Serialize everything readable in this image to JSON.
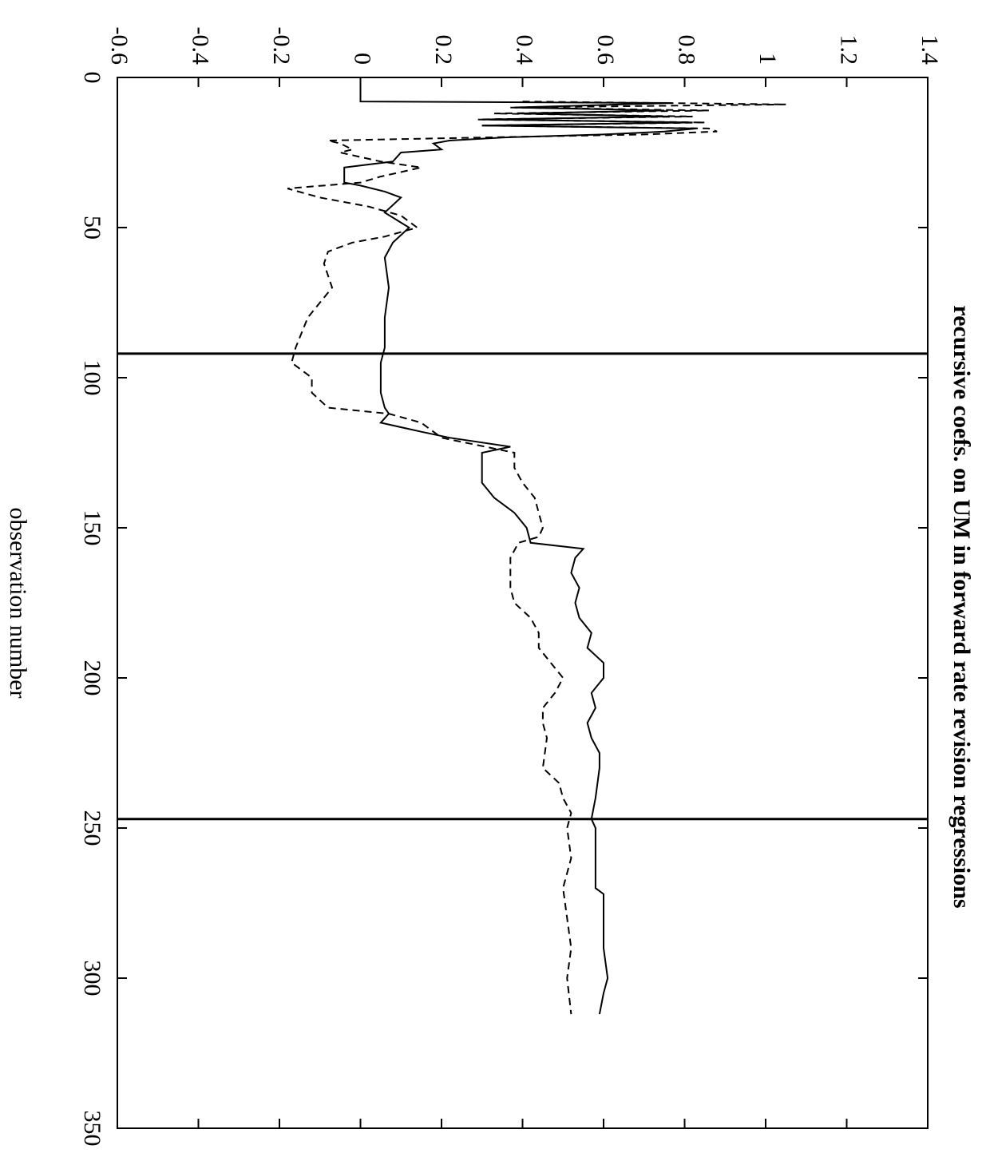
{
  "chart_data": {
    "type": "line",
    "title": "recursive coefs. on UM in forward rate revision regressions",
    "xlabel": "observation number",
    "xlim": [
      0,
      350
    ],
    "xticks": [
      0,
      50,
      100,
      150,
      200,
      250,
      300,
      350
    ],
    "ylim": [
      -0.6,
      1.4
    ],
    "yticks": [
      -0.6,
      -0.4,
      -0.2,
      0,
      0.2,
      0.4,
      0.6,
      0.8,
      1,
      1.2,
      1.4
    ],
    "vlines": [
      92,
      247
    ],
    "color": "#000000",
    "series": [
      {
        "style": "solid",
        "x": [
          0,
          8,
          8.5,
          10,
          11,
          12,
          13,
          14,
          15,
          16,
          17,
          18,
          19,
          20,
          21,
          22,
          24,
          25,
          28,
          30,
          35,
          36,
          38,
          40,
          45,
          50,
          55,
          60,
          70,
          80,
          90,
          95,
          100,
          105,
          110,
          112,
          115,
          118,
          120,
          123,
          125,
          130,
          135,
          140,
          145,
          150,
          155,
          157,
          160,
          165,
          170,
          175,
          180,
          185,
          190,
          195,
          200,
          205,
          210,
          215,
          220,
          225,
          230,
          240,
          247,
          250,
          260,
          270,
          272,
          280,
          290,
          300,
          305,
          312
        ],
        "values": [
          0,
          0,
          0.77,
          0.38,
          0.75,
          0.39,
          0.76,
          0.3,
          0.82,
          0.3,
          0.83,
          0.75,
          0.6,
          0.35,
          0.22,
          0.18,
          0.2,
          0.1,
          0.08,
          -0.04,
          -0.04,
          0,
          0.06,
          0.1,
          0.06,
          0.12,
          0.08,
          0.06,
          0.07,
          0.06,
          0.06,
          0.05,
          0.05,
          0.05,
          0.06,
          0.07,
          0.05,
          0.15,
          0.22,
          0.37,
          0.3,
          0.3,
          0.3,
          0.33,
          0.38,
          0.41,
          0.42,
          0.55,
          0.53,
          0.52,
          0.54,
          0.53,
          0.54,
          0.57,
          0.56,
          0.6,
          0.6,
          0.57,
          0.58,
          0.56,
          0.57,
          0.59,
          0.59,
          0.58,
          0.57,
          0.58,
          0.58,
          0.58,
          0.6,
          0.6,
          0.6,
          0.61,
          0.6,
          0.59
        ]
      },
      {
        "style": "dashed",
        "x": [
          8,
          9,
          10,
          11,
          12,
          13,
          14,
          15,
          16,
          17,
          18,
          19,
          20,
          21,
          22,
          24,
          25,
          28,
          30,
          33,
          35,
          37,
          40,
          43,
          46,
          50,
          53,
          55,
          58,
          62,
          70,
          75,
          80,
          90,
          95,
          100,
          105,
          110,
          112,
          115,
          120,
          125,
          130,
          135,
          140,
          145,
          150,
          153,
          155,
          160,
          170,
          175,
          180,
          185,
          190,
          195,
          200,
          205,
          210,
          215,
          220,
          230,
          235,
          240,
          245,
          250,
          260,
          270,
          280,
          290,
          300,
          312
        ],
        "values": [
          0.4,
          1.05,
          0.37,
          0.86,
          0.33,
          0.82,
          0.29,
          0.85,
          0.3,
          0.86,
          0.88,
          0.7,
          0.3,
          -0.08,
          -0.05,
          -0.02,
          -0.05,
          0.05,
          0.15,
          0.05,
          0,
          -0.18,
          -0.1,
          0.02,
          0.1,
          0.14,
          0.06,
          -0.02,
          -0.08,
          -0.09,
          -0.07,
          -0.1,
          -0.13,
          -0.16,
          -0.17,
          -0.12,
          -0.12,
          -0.08,
          0.07,
          0.15,
          0.2,
          0.38,
          0.38,
          0.4,
          0.43,
          0.44,
          0.45,
          0.44,
          0.39,
          0.37,
          0.37,
          0.38,
          0.42,
          0.44,
          0.44,
          0.47,
          0.5,
          0.48,
          0.45,
          0.45,
          0.46,
          0.45,
          0.49,
          0.5,
          0.52,
          0.51,
          0.52,
          0.5,
          0.51,
          0.52,
          0.51,
          0.52
        ]
      }
    ]
  }
}
